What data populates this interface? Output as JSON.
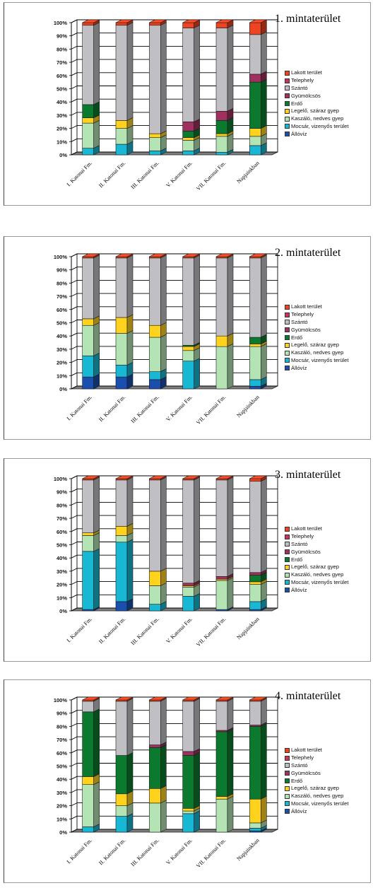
{
  "legend_labels": [
    "Lakott terület",
    "Telephely",
    "Szántó",
    "Gyümölcsös",
    "Erdő",
    "Legelő, száraz gyep",
    "Kaszáló, nedves gyep",
    "Mocsár, vizenyős terület",
    "Állóvíz"
  ],
  "category_colors": [
    "#ee4422",
    "#c8345a",
    "#c0c0c4",
    "#a03060",
    "#0c7a2e",
    "#ffd21e",
    "#b4e4b4",
    "#18b8d4",
    "#1a4fae"
  ],
  "chart_data": [
    {
      "type": "bar",
      "stacked": true,
      "title": "1. mintaterület",
      "categories": [
        "I. Katonai Fm.",
        "II. Katonai Fm.",
        "III. Katonai Fm.",
        "V. Katonai Fm.",
        "VII. Katonai Fm.",
        "Napjainkban"
      ],
      "ytick_labels": [
        "0%",
        "10%",
        "20%",
        "30%",
        "40%",
        "50%",
        "60%",
        "70%",
        "80%",
        "90%",
        "100%"
      ],
      "ylim": [
        0,
        100
      ],
      "grid": true,
      "legend_position": "right",
      "series": [
        {
          "name": "Állóvíz",
          "values": [
            0,
            0,
            0,
            0,
            0,
            0
          ]
        },
        {
          "name": "Mocsár, vizenyős terület",
          "values": [
            5,
            8,
            3,
            3,
            2,
            7
          ]
        },
        {
          "name": "Kaszáló, nedves gyep",
          "values": [
            19,
            12,
            10,
            8,
            12,
            7
          ]
        },
        {
          "name": "Legelő, száraz gyep",
          "values": [
            4,
            6,
            3,
            2,
            2,
            6
          ]
        },
        {
          "name": "Erdő",
          "values": [
            10,
            0,
            0,
            5,
            10,
            35
          ]
        },
        {
          "name": "Gyümölcsös",
          "values": [
            0,
            0,
            0,
            7,
            7,
            6
          ]
        },
        {
          "name": "Telephely",
          "values": [
            0,
            0,
            0,
            0,
            0,
            0
          ]
        },
        {
          "name": "Szántó",
          "values": [
            60,
            72,
            82,
            71,
            63,
            30
          ]
        },
        {
          "name": "Lakott terület",
          "values": [
            2,
            2,
            2,
            4,
            4,
            9
          ]
        }
      ]
    },
    {
      "type": "bar",
      "stacked": true,
      "title": "2. mintaterület",
      "categories": [
        "I. Katonai Fm.",
        "II. Katonai Fm.",
        "III. Katonai Fm.",
        "V. Katonai Fm.",
        "VII. Katonai Fm.",
        "Napjainkban"
      ],
      "ytick_labels": [
        "0%",
        "10%",
        "20%",
        "30%",
        "40%",
        "50%",
        "60%",
        "70%",
        "80%",
        "90%",
        "100%"
      ],
      "ylim": [
        0,
        100
      ],
      "grid": true,
      "legend_position": "right",
      "series": [
        {
          "name": "Állóvíz",
          "values": [
            9,
            9,
            7,
            0,
            0,
            2
          ]
        },
        {
          "name": "Mocsár, vizenyős terület",
          "values": [
            16,
            9,
            6,
            21,
            0,
            5
          ]
        },
        {
          "name": "Kaszáló, nedves gyep",
          "values": [
            23,
            24,
            26,
            8,
            32,
            25
          ]
        },
        {
          "name": "Legelő, száraz gyep",
          "values": [
            5,
            12,
            9,
            3,
            8,
            2
          ]
        },
        {
          "name": "Erdő",
          "values": [
            0,
            0,
            0,
            1,
            0,
            5
          ]
        },
        {
          "name": "Gyümölcsös",
          "values": [
            0,
            0,
            0,
            0,
            0,
            0
          ]
        },
        {
          "name": "Telephely",
          "values": [
            0,
            0,
            0,
            0,
            0,
            0
          ]
        },
        {
          "name": "Szántó",
          "values": [
            46,
            45,
            51,
            66,
            59,
            60
          ]
        },
        {
          "name": "Lakott terület",
          "values": [
            1,
            1,
            1,
            1,
            1,
            1
          ]
        }
      ]
    },
    {
      "type": "bar",
      "stacked": true,
      "title": "3. mintaterület",
      "categories": [
        "I. Katonai Fm.",
        "II. Katonai Fm.",
        "III. Katonai Fm.",
        "V. Katonai Fm.",
        "VII. Katonai Fm.",
        "Napjainkban"
      ],
      "ytick_labels": [
        "0%",
        "10%",
        "20%",
        "30%",
        "40%",
        "50%",
        "60%",
        "70%",
        "80%",
        "90%",
        "100%"
      ],
      "ylim": [
        0,
        100
      ],
      "grid": true,
      "legend_position": "right",
      "series": [
        {
          "name": "Állóvíz",
          "values": [
            1,
            7,
            0,
            0,
            1,
            1
          ]
        },
        {
          "name": "Mocsár, vizenyős terület",
          "values": [
            44,
            45,
            5,
            11,
            0,
            6
          ]
        },
        {
          "name": "Kaszáló, nedves gyep",
          "values": [
            12,
            5,
            14,
            7,
            22,
            13
          ]
        },
        {
          "name": "Legelő, száraz gyep",
          "values": [
            2,
            7,
            11,
            1,
            1,
            2
          ]
        },
        {
          "name": "Erdő",
          "values": [
            0,
            0,
            0,
            0,
            0,
            5
          ]
        },
        {
          "name": "Gyümölcsös",
          "values": [
            0,
            0,
            0,
            2,
            2,
            2
          ]
        },
        {
          "name": "Telephely",
          "values": [
            0,
            0,
            0,
            0,
            0,
            0
          ]
        },
        {
          "name": "Szántó",
          "values": [
            40,
            35,
            69,
            78,
            73,
            69
          ]
        },
        {
          "name": "Lakott terület",
          "values": [
            1,
            1,
            1,
            1,
            1,
            2
          ]
        }
      ]
    },
    {
      "type": "bar",
      "stacked": true,
      "title": "4. mintaterület",
      "categories": [
        "I. Katonai Fm.",
        "II. Katonai Fm.",
        "III. Katonai Fm.",
        "V. Katonai Fm.",
        "VII. Katonai Fm.",
        "Napjainkban"
      ],
      "ytick_labels": [
        "0%",
        "10%",
        "20%",
        "30%",
        "40%",
        "50%",
        "60%",
        "70%",
        "80%",
        "90%",
        "100%"
      ],
      "ylim": [
        0,
        100
      ],
      "grid": true,
      "legend_position": "right",
      "series": [
        {
          "name": "Állóvíz",
          "values": [
            0,
            0,
            0,
            0,
            0,
            1
          ]
        },
        {
          "name": "Mocsár, vizenyős terület",
          "values": [
            4,
            12,
            0,
            14,
            0,
            2
          ]
        },
        {
          "name": "Kaszáló, nedves gyep",
          "values": [
            32,
            8,
            22,
            2,
            25,
            4
          ]
        },
        {
          "name": "Legelő, száraz gyep",
          "values": [
            6,
            9,
            11,
            2,
            2,
            18
          ]
        },
        {
          "name": "Erdő",
          "values": [
            49,
            29,
            31,
            40,
            49,
            55
          ]
        },
        {
          "name": "Gyümölcsös",
          "values": [
            0,
            0,
            2,
            3,
            1,
            1
          ]
        },
        {
          "name": "Telephely",
          "values": [
            0,
            0,
            0,
            0,
            0,
            0
          ]
        },
        {
          "name": "Szántó",
          "values": [
            8,
            41,
            33,
            38,
            22,
            18
          ]
        },
        {
          "name": "Lakott terület",
          "values": [
            1,
            1,
            1,
            1,
            1,
            1
          ]
        }
      ]
    }
  ]
}
